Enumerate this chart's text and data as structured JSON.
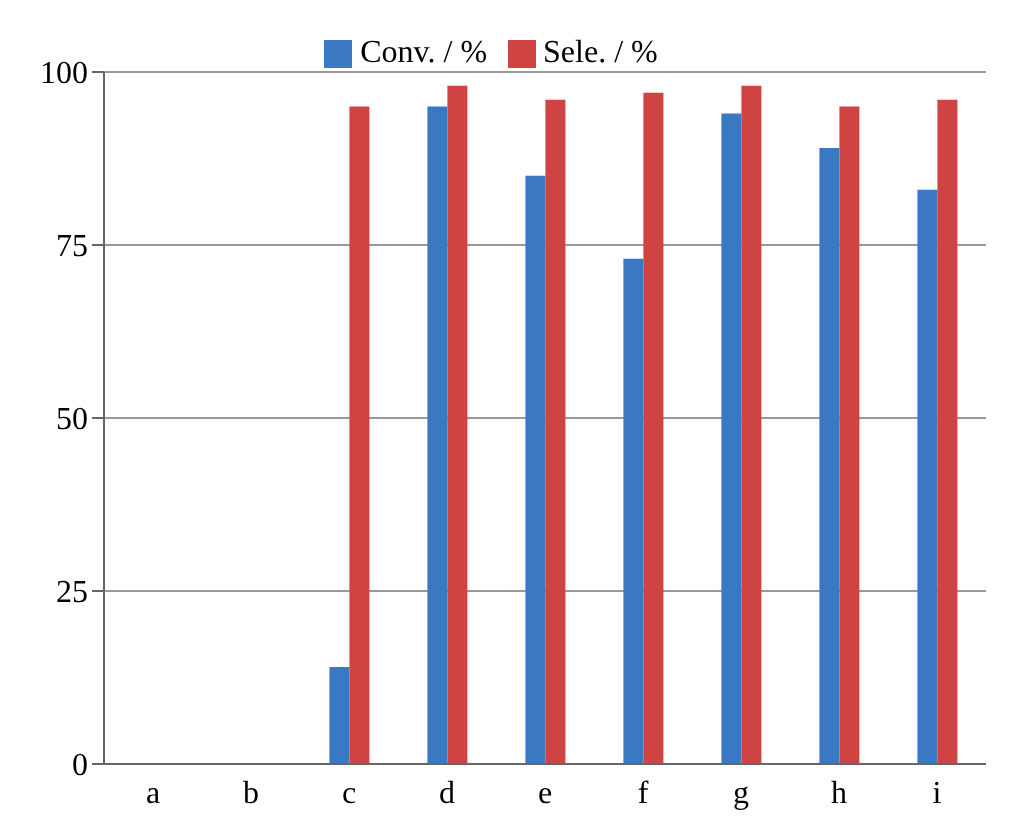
{
  "chart_data": {
    "type": "bar",
    "categories": [
      "a",
      "b",
      "c",
      "d",
      "e",
      "f",
      "g",
      "h",
      "i"
    ],
    "series": [
      {
        "name": "Conv. / %",
        "color": "#3b78c4",
        "values": [
          0,
          0,
          14,
          95,
          85,
          73,
          94,
          89,
          83
        ]
      },
      {
        "name": "Sele. / %",
        "color": "#d04343",
        "values": [
          0,
          0,
          95,
          98,
          96,
          97,
          98,
          95,
          96
        ]
      }
    ],
    "ylim": [
      0,
      100
    ],
    "yticks": [
      0,
      25,
      50,
      75,
      100
    ],
    "grid": "y",
    "legend": "top"
  }
}
